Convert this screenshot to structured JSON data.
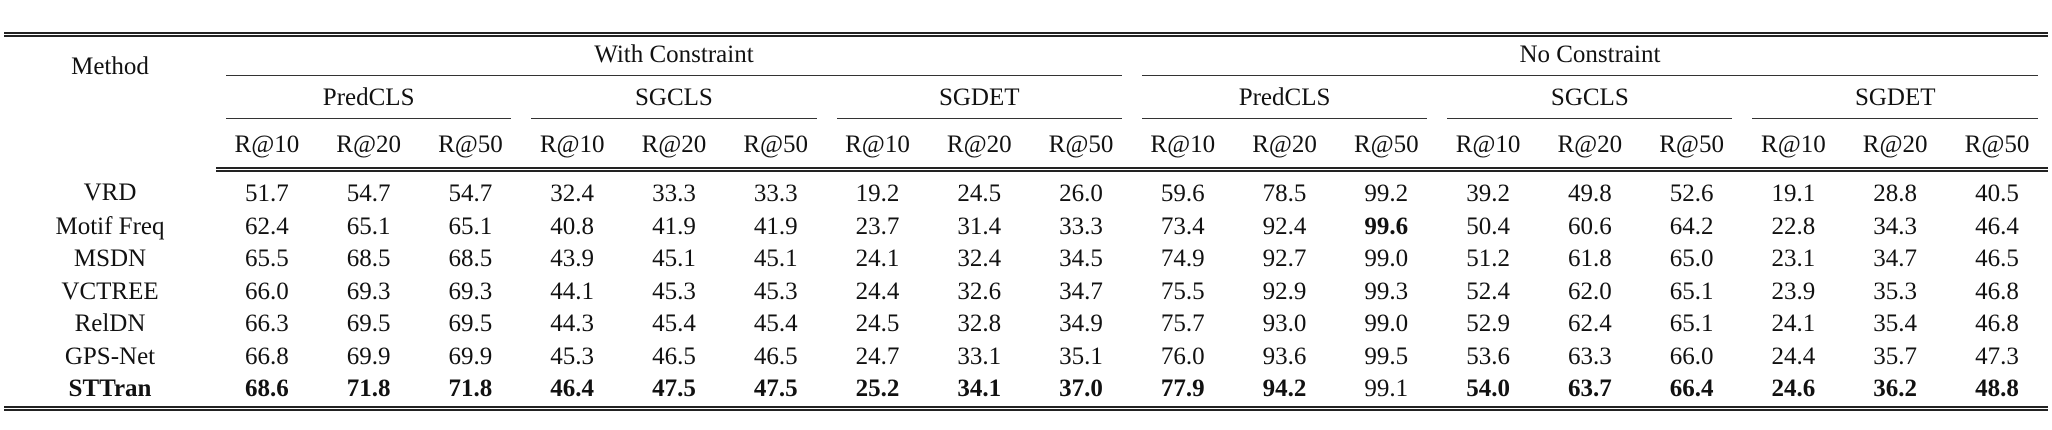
{
  "header": {
    "method": "Method",
    "groups": [
      {
        "title": "With Constraint",
        "subgroups": [
          {
            "title": "PredCLS",
            "metrics": [
              "R@10",
              "R@20",
              "R@50"
            ]
          },
          {
            "title": "SGCLS",
            "metrics": [
              "R@10",
              "R@20",
              "R@50"
            ]
          },
          {
            "title": "SGDET",
            "metrics": [
              "R@10",
              "R@20",
              "R@50"
            ]
          }
        ]
      },
      {
        "title": "No Constraint",
        "subgroups": [
          {
            "title": "PredCLS",
            "metrics": [
              "R@10",
              "R@20",
              "R@50"
            ]
          },
          {
            "title": "SGCLS",
            "metrics": [
              "R@10",
              "R@20",
              "R@50"
            ]
          },
          {
            "title": "SGDET",
            "metrics": [
              "R@10",
              "R@20",
              "R@50"
            ]
          }
        ]
      }
    ]
  },
  "table": {
    "rows": [
      {
        "method": "VRD",
        "values": [
          "51.7",
          "54.7",
          "54.7",
          "32.4",
          "33.3",
          "33.3",
          "19.2",
          "24.5",
          "26.0",
          "59.6",
          "78.5",
          "99.2",
          "39.2",
          "49.8",
          "52.6",
          "19.1",
          "28.8",
          "40.5"
        ]
      },
      {
        "method": "Motif Freq",
        "values": [
          "62.4",
          "65.1",
          "65.1",
          "40.8",
          "41.9",
          "41.9",
          "23.7",
          "31.4",
          "33.3",
          "73.4",
          "92.4",
          "99.6",
          "50.4",
          "60.6",
          "64.2",
          "22.8",
          "34.3",
          "46.4"
        ]
      },
      {
        "method": "MSDN",
        "values": [
          "65.5",
          "68.5",
          "68.5",
          "43.9",
          "45.1",
          "45.1",
          "24.1",
          "32.4",
          "34.5",
          "74.9",
          "92.7",
          "99.0",
          "51.2",
          "61.8",
          "65.0",
          "23.1",
          "34.7",
          "46.5"
        ]
      },
      {
        "method": "VCTREE",
        "values": [
          "66.0",
          "69.3",
          "69.3",
          "44.1",
          "45.3",
          "45.3",
          "24.4",
          "32.6",
          "34.7",
          "75.5",
          "92.9",
          "99.3",
          "52.4",
          "62.0",
          "65.1",
          "23.9",
          "35.3",
          "46.8"
        ]
      },
      {
        "method": "RelDN",
        "values": [
          "66.3",
          "69.5",
          "69.5",
          "44.3",
          "45.4",
          "45.4",
          "24.5",
          "32.8",
          "34.9",
          "75.7",
          "93.0",
          "99.0",
          "52.9",
          "62.4",
          "65.1",
          "24.1",
          "35.4",
          "46.8"
        ]
      },
      {
        "method": "GPS-Net",
        "values": [
          "66.8",
          "69.9",
          "69.9",
          "45.3",
          "46.5",
          "46.5",
          "24.7",
          "33.1",
          "35.1",
          "76.0",
          "93.6",
          "99.5",
          "53.6",
          "63.3",
          "66.0",
          "24.4",
          "35.7",
          "47.3"
        ]
      },
      {
        "method": "STTran",
        "values": [
          "68.6",
          "71.8",
          "71.8",
          "46.4",
          "47.5",
          "47.5",
          "25.2",
          "34.1",
          "37.0",
          "77.9",
          "94.2",
          "99.1",
          "54.0",
          "63.7",
          "66.4",
          "24.6",
          "36.2",
          "48.8"
        ]
      }
    ]
  }
}
